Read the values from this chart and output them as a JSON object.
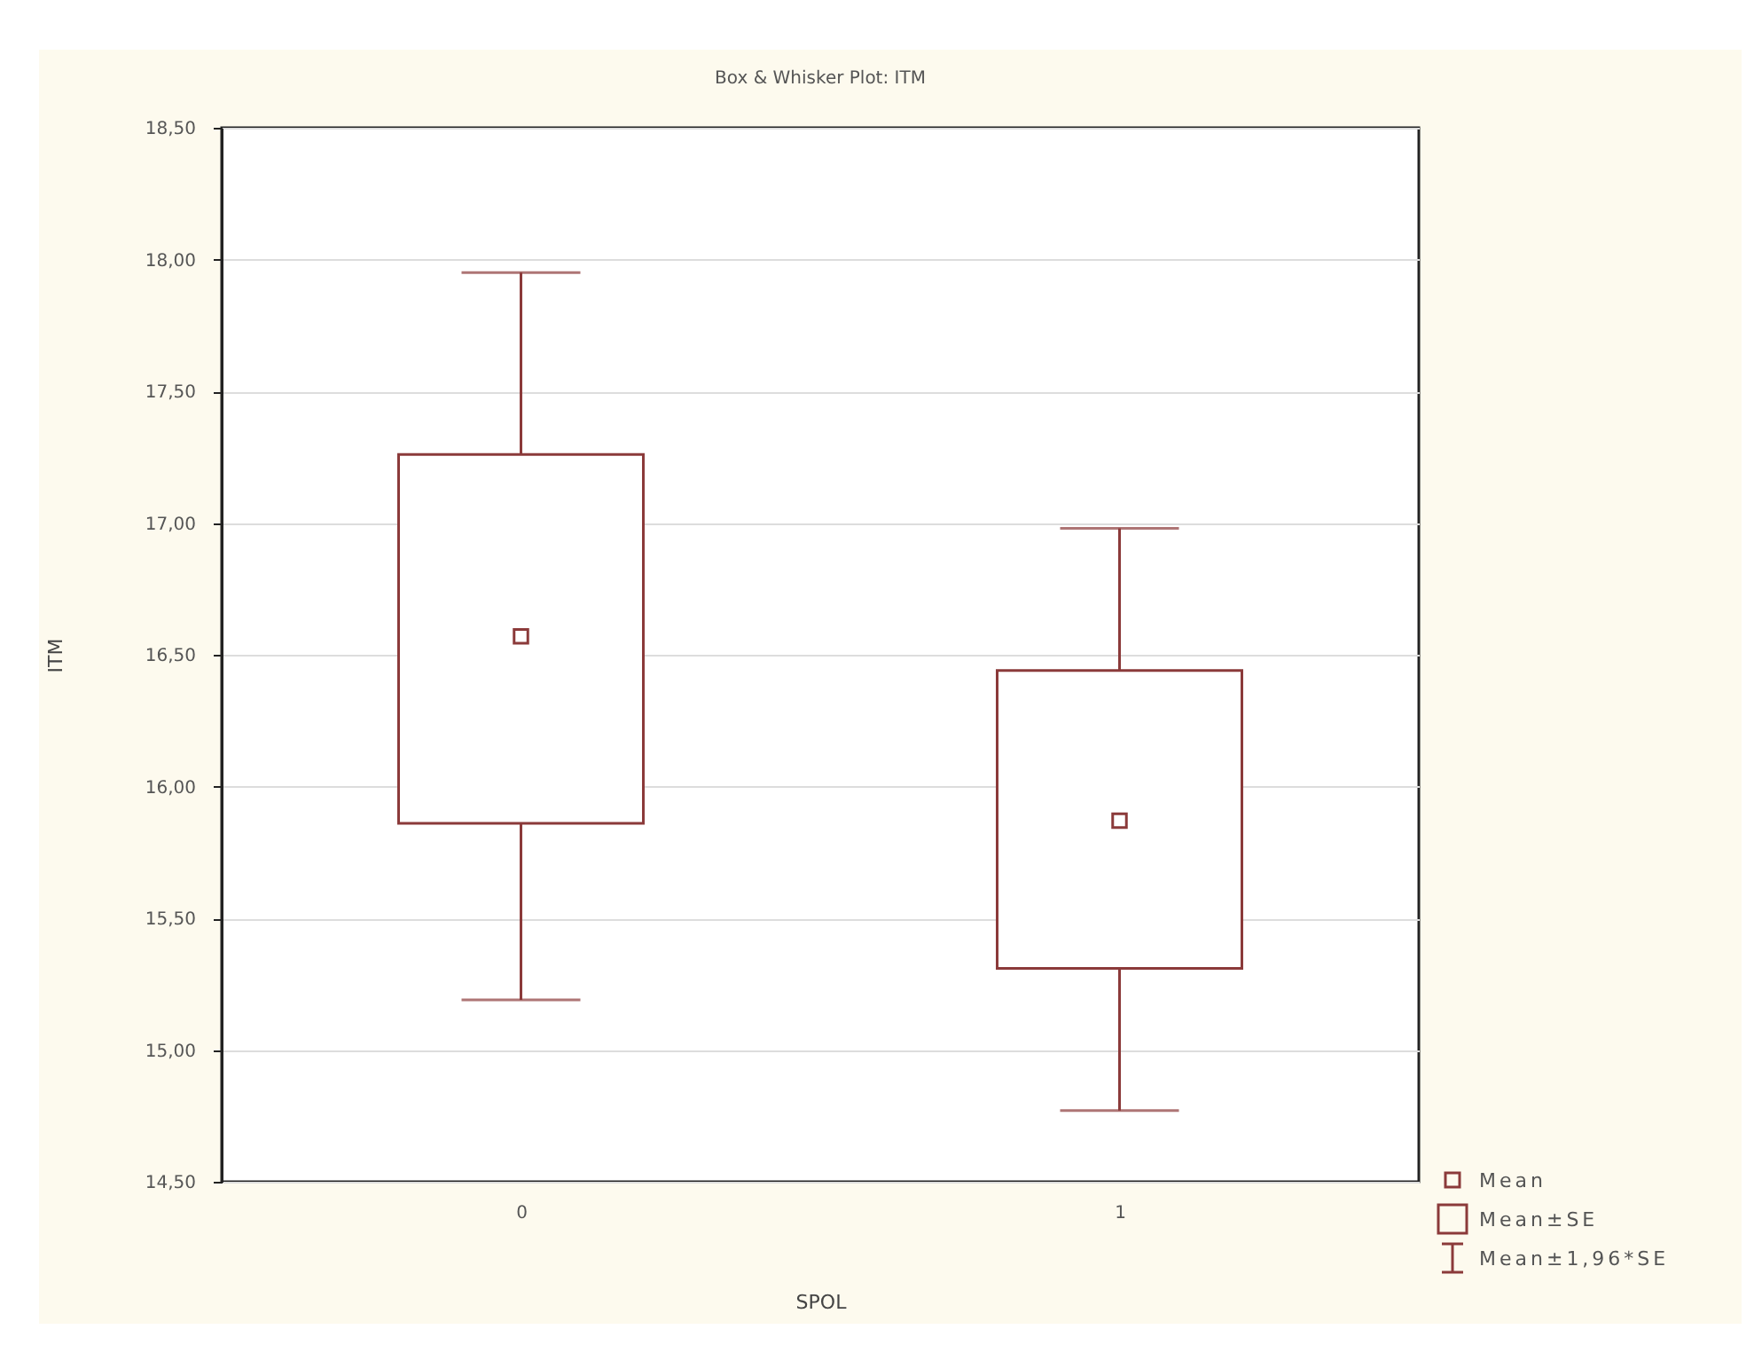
{
  "chart_data": {
    "type": "box",
    "title": "Box & Whisker Plot: ITM",
    "xlabel": "SPOL",
    "ylabel": "ITM",
    "categories": [
      "0",
      "1"
    ],
    "series": [
      {
        "color": "#8b3a3a",
        "boxes": [
          {
            "low": 15.19,
            "q1": 15.86,
            "mean": 16.57,
            "q3": 17.26,
            "high": 17.95
          },
          {
            "low": 14.77,
            "q1": 15.31,
            "mean": 15.87,
            "q3": 16.44,
            "high": 16.98
          }
        ]
      }
    ],
    "ylim": [
      14.5,
      18.5
    ],
    "yticks": [
      {
        "value": 14.5,
        "label": "14,50"
      },
      {
        "value": 15,
        "label": "15,00"
      },
      {
        "value": 15.5,
        "label": "15,50"
      },
      {
        "value": 16,
        "label": "16,00"
      },
      {
        "value": 16.5,
        "label": "16,50"
      },
      {
        "value": 17,
        "label": "17,00"
      },
      {
        "value": 17.5,
        "label": "17,50"
      },
      {
        "value": 18,
        "label": "18,00"
      },
      {
        "value": 18.5,
        "label": "18,50"
      }
    ],
    "grid": "y",
    "annotations": [
      "Mean",
      "Mean±SE",
      "Mean±1,96*SE"
    ]
  }
}
